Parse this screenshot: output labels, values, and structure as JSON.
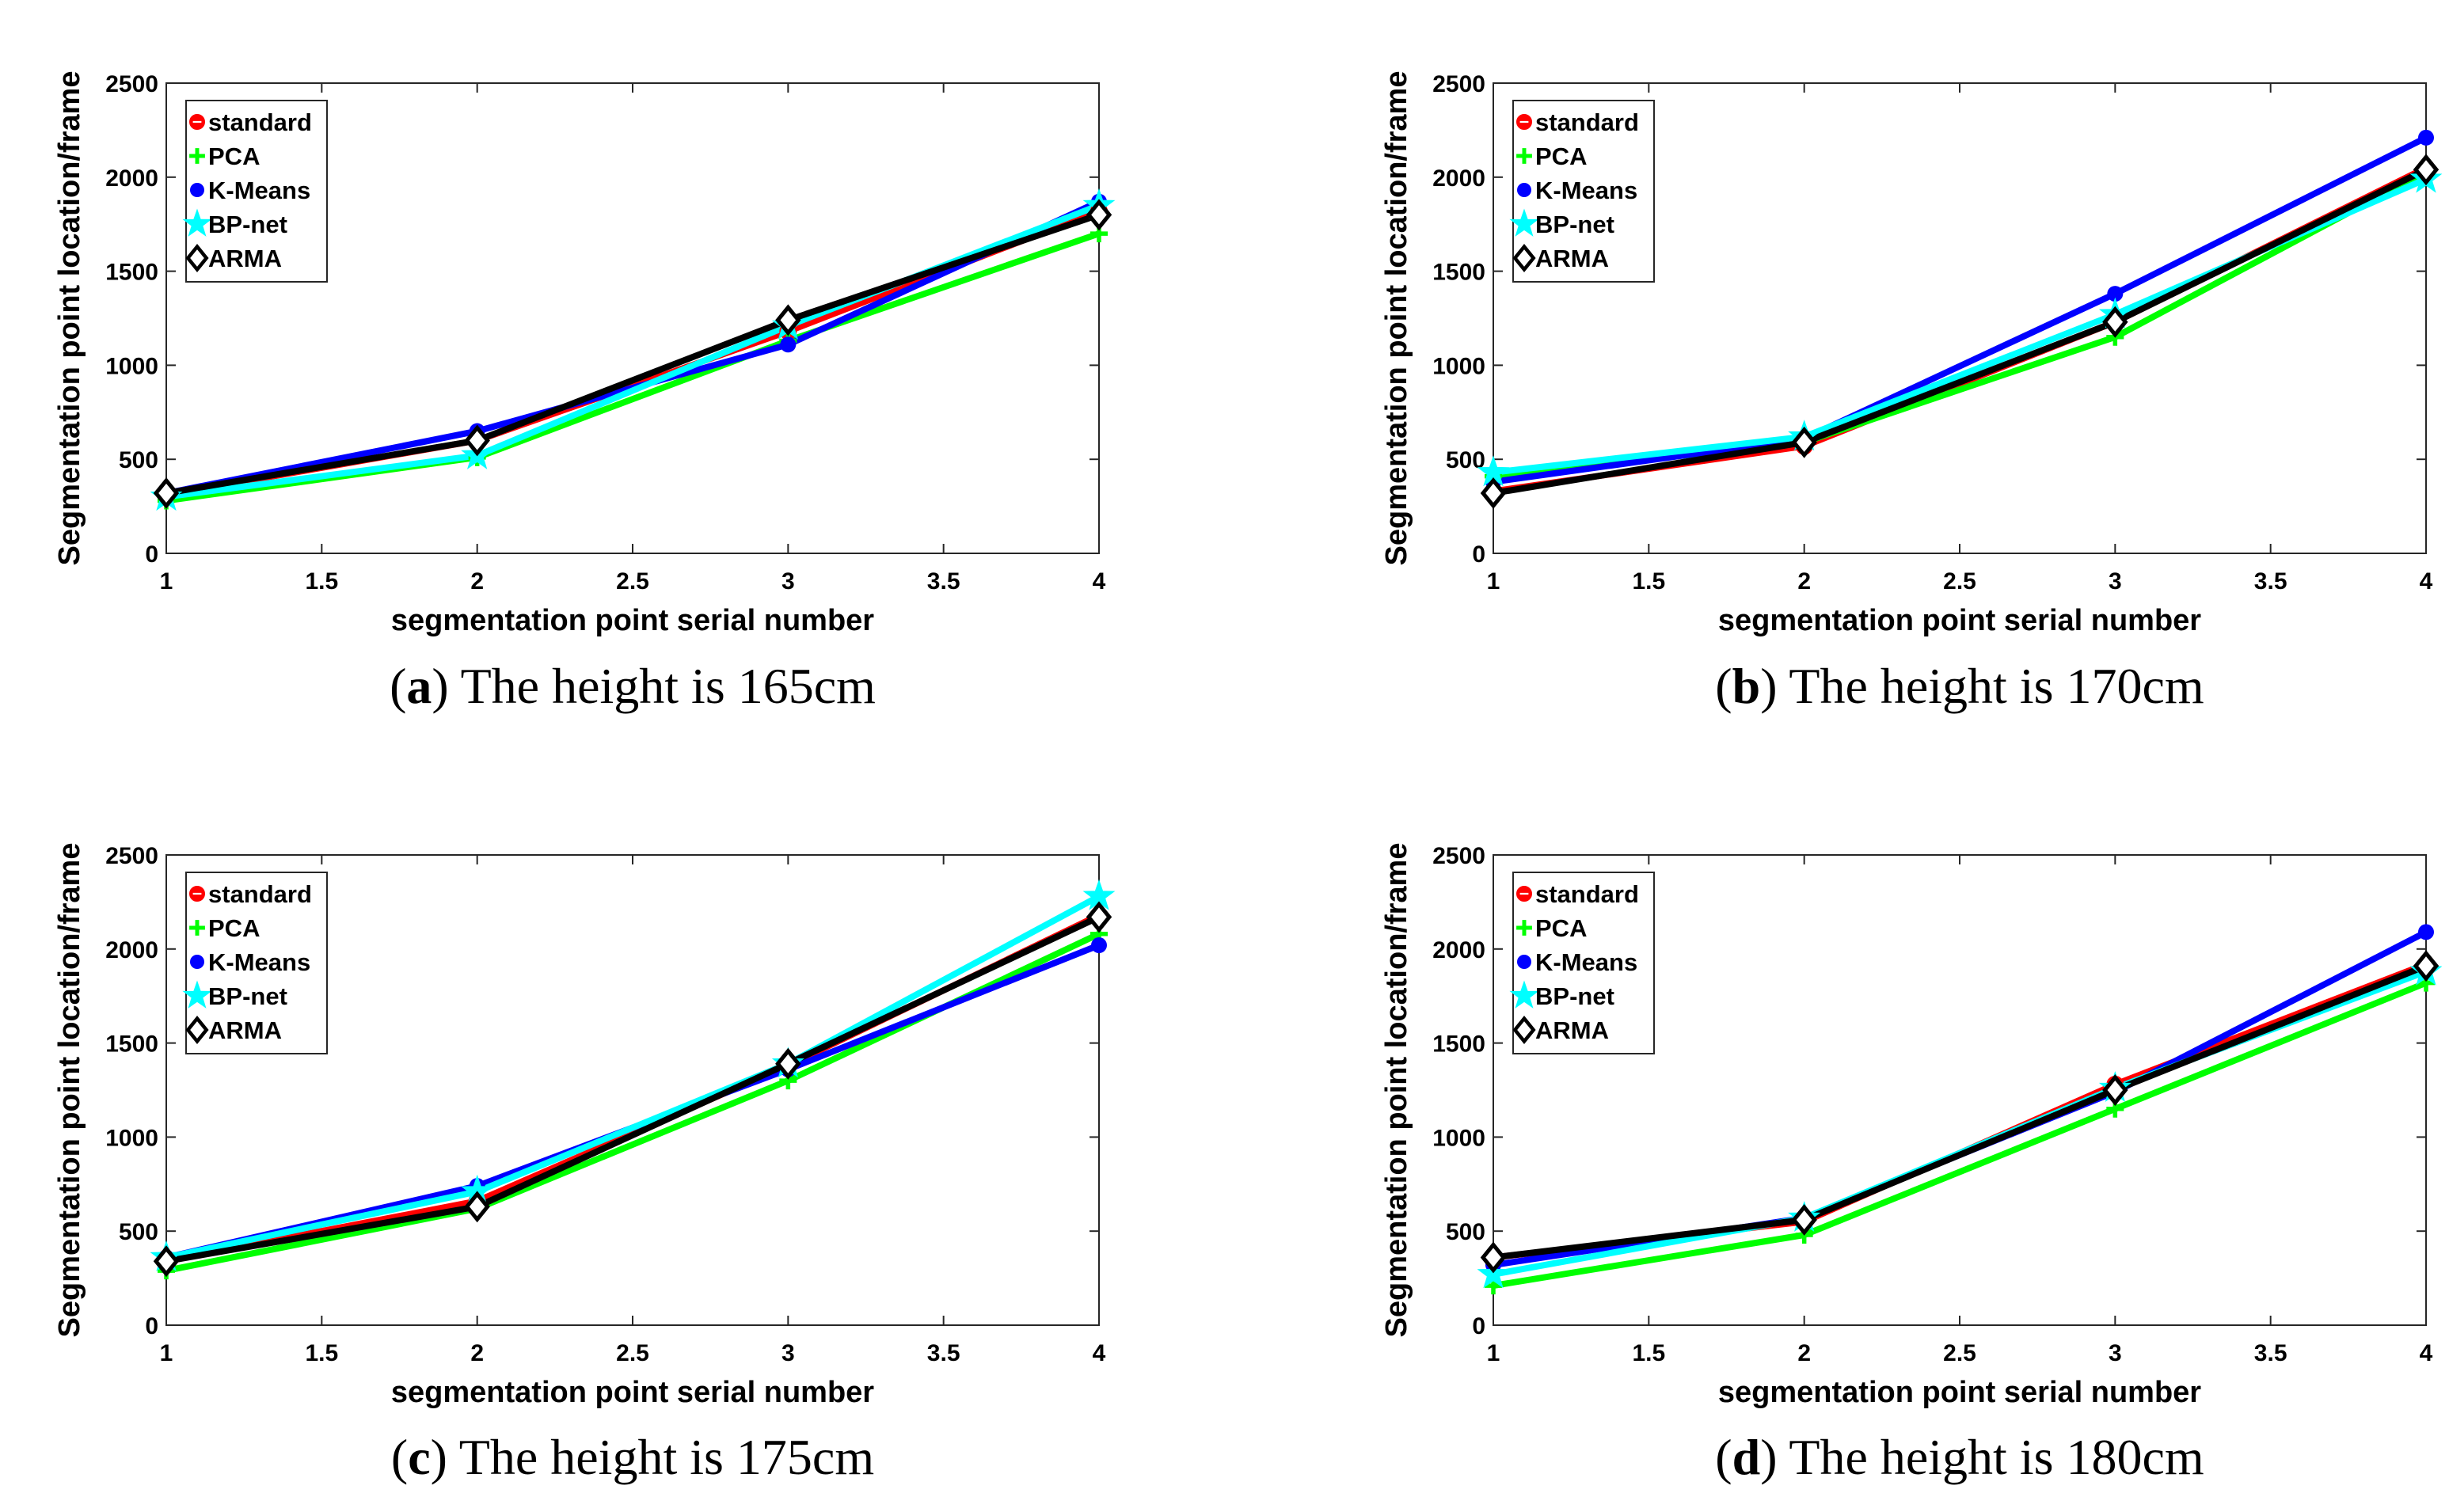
{
  "chart_data": [
    {
      "type": "line",
      "caption_label": "a",
      "caption_text": "The height is 165cm",
      "xlabel": "segmentation point serial number",
      "ylabel": "Segmentation point location/frame",
      "xlim": [
        1,
        4
      ],
      "ylim": [
        0,
        2500
      ],
      "xticks": [
        "1",
        "1.5",
        "2",
        "2.5",
        "3",
        "3.5",
        "4"
      ],
      "yticks": [
        "0",
        "500",
        "1000",
        "1500",
        "2000",
        "2500"
      ],
      "legend_position": "top-left",
      "grid": false,
      "x": [
        1,
        2,
        3,
        4
      ],
      "series": [
        {
          "name": "standard",
          "color": "#ff0000",
          "marker": "circle",
          "values": [
            310,
            600,
            1180,
            1820
          ]
        },
        {
          "name": "PCA",
          "color": "#00ff00",
          "marker": "plus",
          "values": [
            280,
            510,
            1130,
            1700
          ]
        },
        {
          "name": "K-Means",
          "color": "#0000ff",
          "marker": "dot",
          "values": [
            320,
            650,
            1110,
            1870
          ]
        },
        {
          "name": "BP-net",
          "color": "#00ffff",
          "marker": "star",
          "values": [
            300,
            520,
            1210,
            1850
          ]
        },
        {
          "name": "ARMA",
          "color": "#000000",
          "marker": "diamond",
          "values": [
            320,
            600,
            1240,
            1800
          ]
        }
      ]
    },
    {
      "type": "line",
      "caption_label": "b",
      "caption_text": "The height is 170cm",
      "xlabel": "segmentation point serial number",
      "ylabel": "Segmentation point location/frame",
      "xlim": [
        1,
        4
      ],
      "ylim": [
        0,
        2500
      ],
      "xticks": [
        "1",
        "1.5",
        "2",
        "2.5",
        "3",
        "3.5",
        "4"
      ],
      "yticks": [
        "0",
        "500",
        "1000",
        "1500",
        "2000",
        "2500"
      ],
      "legend_position": "top-left",
      "grid": false,
      "x": [
        1,
        2,
        3,
        4
      ],
      "series": [
        {
          "name": "standard",
          "color": "#ff0000",
          "marker": "circle",
          "values": [
            330,
            570,
            1230,
            2050
          ]
        },
        {
          "name": "PCA",
          "color": "#00ff00",
          "marker": "plus",
          "values": [
            410,
            590,
            1150,
            2030
          ]
        },
        {
          "name": "K-Means",
          "color": "#0000ff",
          "marker": "dot",
          "values": [
            380,
            610,
            1380,
            2210
          ]
        },
        {
          "name": "BP-net",
          "color": "#00ffff",
          "marker": "star",
          "values": [
            430,
            620,
            1270,
            1990
          ]
        },
        {
          "name": "ARMA",
          "color": "#000000",
          "marker": "diamond",
          "values": [
            320,
            590,
            1230,
            2040
          ]
        }
      ]
    },
    {
      "type": "line",
      "caption_label": "c",
      "caption_text": "The height is 175cm",
      "xlabel": "segmentation point serial number",
      "ylabel": "Segmentation point location/frame",
      "xlim": [
        1,
        4
      ],
      "ylim": [
        0,
        2500
      ],
      "xticks": [
        "1",
        "1.5",
        "2",
        "2.5",
        "3",
        "3.5",
        "4"
      ],
      "yticks": [
        "0",
        "500",
        "1000",
        "1500",
        "2000",
        "2500"
      ],
      "legend_position": "top-left",
      "grid": false,
      "x": [
        1,
        2,
        3,
        4
      ],
      "series": [
        {
          "name": "standard",
          "color": "#ff0000",
          "marker": "circle",
          "values": [
            340,
            660,
            1380,
            2180
          ]
        },
        {
          "name": "PCA",
          "color": "#00ff00",
          "marker": "plus",
          "values": [
            290,
            620,
            1300,
            2080
          ]
        },
        {
          "name": "K-Means",
          "color": "#0000ff",
          "marker": "dot",
          "values": [
            360,
            740,
            1360,
            2020
          ]
        },
        {
          "name": "BP-net",
          "color": "#00ffff",
          "marker": "star",
          "values": [
            360,
            710,
            1390,
            2280
          ]
        },
        {
          "name": "ARMA",
          "color": "#000000",
          "marker": "diamond",
          "values": [
            340,
            630,
            1390,
            2170
          ]
        }
      ]
    },
    {
      "type": "line",
      "caption_label": "d",
      "caption_text": "The height is 180cm",
      "xlabel": "segmentation point serial number",
      "ylabel": "Segmentation point location/frame",
      "xlim": [
        1,
        4
      ],
      "ylim": [
        0,
        2500
      ],
      "xticks": [
        "1",
        "1.5",
        "2",
        "2.5",
        "3",
        "3.5",
        "4"
      ],
      "yticks": [
        "0",
        "500",
        "1000",
        "1500",
        "2000",
        "2500"
      ],
      "legend_position": "top-left",
      "grid": false,
      "x": [
        1,
        2,
        3,
        4
      ],
      "series": [
        {
          "name": "standard",
          "color": "#ff0000",
          "marker": "circle",
          "values": [
            360,
            550,
            1280,
            1920
          ]
        },
        {
          "name": "PCA",
          "color": "#00ff00",
          "marker": "plus",
          "values": [
            210,
            480,
            1150,
            1820
          ]
        },
        {
          "name": "K-Means",
          "color": "#0000ff",
          "marker": "dot",
          "values": [
            320,
            570,
            1240,
            2090
          ]
        },
        {
          "name": "BP-net",
          "color": "#00ffff",
          "marker": "star",
          "values": [
            270,
            570,
            1260,
            1880
          ]
        },
        {
          "name": "ARMA",
          "color": "#000000",
          "marker": "diamond",
          "values": [
            360,
            560,
            1250,
            1910
          ]
        }
      ]
    }
  ]
}
